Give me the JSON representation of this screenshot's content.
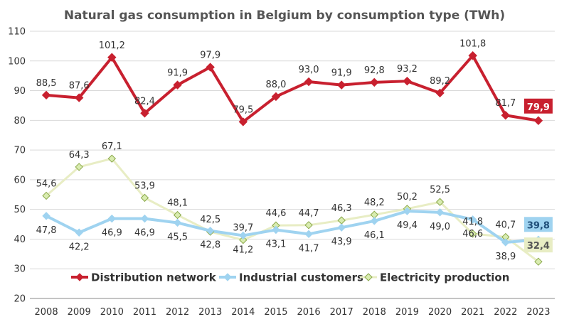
{
  "chart_data": {
    "type": "line",
    "title": "Natural gas consumption in Belgium by consumption type (TWh)",
    "xlabel": "",
    "ylabel": "",
    "ylim": [
      20,
      110
    ],
    "yticks": [
      20,
      30,
      40,
      50,
      60,
      70,
      80,
      90,
      100,
      110
    ],
    "grid": "horizontal",
    "legend_position": "bottom",
    "categories": [
      "2008",
      "2009",
      "2010",
      "2011",
      "2012",
      "2013",
      "2014",
      "2015",
      "2016",
      "2017",
      "2018",
      "2019",
      "2020",
      "2021",
      "2022",
      "2023"
    ],
    "series": [
      {
        "name": "Distribution network",
        "color": "#c8202f",
        "marker": "diamond",
        "values": [
          88.5,
          87.6,
          101.2,
          82.4,
          91.9,
          97.9,
          79.5,
          88.0,
          93.0,
          91.9,
          92.8,
          93.2,
          89.2,
          101.8,
          81.7,
          79.9
        ],
        "labels": [
          "88,5",
          "87,6",
          "101,2",
          "82,4",
          "91,9",
          "97,9",
          "79,5",
          "88,0",
          "93,0",
          "91,9",
          "92,8",
          "93,2",
          "89,2",
          "101,8",
          "81,7",
          "79,9"
        ]
      },
      {
        "name": "Industrial customers",
        "color": "#9fd3f0",
        "marker": "diamond",
        "values": [
          47.8,
          42.2,
          46.9,
          46.9,
          45.5,
          42.8,
          41.2,
          43.1,
          41.7,
          43.9,
          46.1,
          49.4,
          49.0,
          46.6,
          38.9,
          39.8
        ],
        "labels": [
          "47,8",
          "42,2",
          "46,9",
          "46,9",
          "45,5",
          "42,8",
          "41,2",
          "43,1",
          "41,7",
          "43,9",
          "46,1",
          "49,4",
          "49,0",
          "46,6",
          "38,9",
          "39,8"
        ]
      },
      {
        "name": "Electricity production",
        "color": "#e8edc4",
        "marker_fill": "#d9ecb0",
        "marker_stroke": "#8aa84a",
        "marker": "diamond-outline",
        "values": [
          54.6,
          64.3,
          67.1,
          53.9,
          48.1,
          42.5,
          39.7,
          44.6,
          44.7,
          46.3,
          48.2,
          50.2,
          52.5,
          41.8,
          40.7,
          32.4
        ],
        "labels": [
          "54,6",
          "64,3",
          "67,1",
          "53,9",
          "48,1",
          "42,5",
          "39,7",
          "44,6",
          "44,7",
          "46,3",
          "48,2",
          "50,2",
          "52,5",
          "41,8",
          "40,7",
          "32,4"
        ]
      }
    ]
  }
}
